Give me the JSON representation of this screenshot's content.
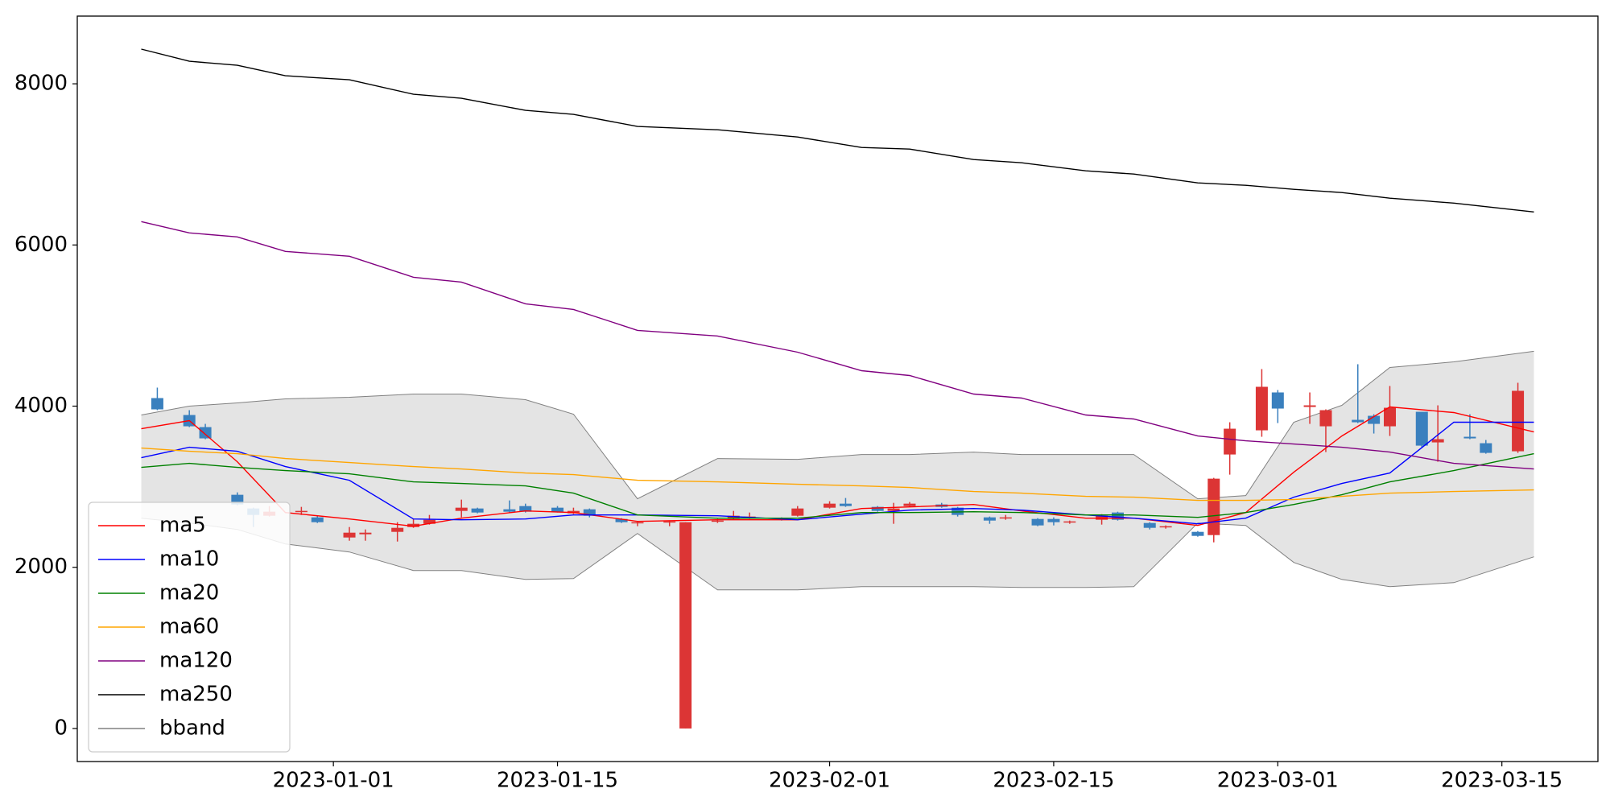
{
  "chart_data": {
    "type": "candlestick",
    "x": [
      "2022-12-20",
      "2022-12-23",
      "2022-12-26",
      "2022-12-29",
      "2023-01-02",
      "2023-01-06",
      "2023-01-09",
      "2023-01-13",
      "2023-01-16",
      "2023-01-20",
      "2023-01-25",
      "2023-01-30",
      "2023-02-03",
      "2023-02-06",
      "2023-02-10",
      "2023-02-13",
      "2023-02-17",
      "2023-02-20",
      "2023-02-24",
      "2023-02-27",
      "2023-03-02",
      "2023-03-05",
      "2023-03-08",
      "2023-03-12",
      "2023-03-17"
    ],
    "series": [
      {
        "name": "ma5",
        "color": "#ff0000",
        "values": [
          3720,
          3820,
          3310,
          2680,
          2600,
          2510,
          2610,
          2700,
          2680,
          2570,
          2590,
          2590,
          2730,
          2750,
          2780,
          2700,
          2610,
          2610,
          2520,
          2680,
          3180,
          3630,
          3990,
          3920,
          3680
        ]
      },
      {
        "name": "ma10",
        "color": "#0000ff",
        "values": [
          3360,
          3490,
          3440,
          3250,
          3080,
          2600,
          2590,
          2600,
          2650,
          2650,
          2640,
          2590,
          2660,
          2710,
          2730,
          2710,
          2650,
          2610,
          2540,
          2610,
          2870,
          3040,
          3170,
          3800,
          3800
        ]
      },
      {
        "name": "ma20",
        "color": "#008000",
        "values": [
          3240,
          3290,
          3240,
          3200,
          3160,
          3060,
          3040,
          3010,
          2920,
          2650,
          2610,
          2610,
          2680,
          2680,
          2690,
          2680,
          2650,
          2650,
          2620,
          2680,
          2780,
          2900,
          3060,
          3200,
          3410
        ]
      },
      {
        "name": "ma60",
        "color": "#ffa500",
        "values": [
          3480,
          3440,
          3410,
          3350,
          3300,
          3250,
          3220,
          3170,
          3150,
          3080,
          3060,
          3030,
          3010,
          2990,
          2940,
          2920,
          2880,
          2870,
          2830,
          2830,
          2840,
          2880,
          2920,
          2940,
          2960
        ]
      },
      {
        "name": "ma120",
        "color": "#800080",
        "values": [
          6290,
          6150,
          6100,
          5920,
          5860,
          5600,
          5540,
          5270,
          5200,
          4940,
          4870,
          4670,
          4440,
          4380,
          4150,
          4100,
          3890,
          3840,
          3630,
          3570,
          3530,
          3490,
          3430,
          3290,
          3220
        ]
      },
      {
        "name": "ma250",
        "color": "#000000",
        "values": [
          8430,
          8280,
          8230,
          8100,
          8050,
          7870,
          7820,
          7670,
          7620,
          7470,
          7430,
          7340,
          7210,
          7190,
          7060,
          7020,
          6920,
          6880,
          6770,
          6740,
          6690,
          6650,
          6580,
          6520,
          6410
        ]
      }
    ],
    "band": {
      "name": "bband",
      "color": "#808080",
      "fill": "#e4e4e4",
      "upper": [
        3890,
        4000,
        4040,
        4090,
        4110,
        4150,
        4150,
        4080,
        3900,
        2850,
        3350,
        3340,
        3400,
        3400,
        3430,
        3400,
        3400,
        3400,
        2850,
        2890,
        3800,
        4010,
        4480,
        4550,
        4680
      ],
      "lower": [
        2610,
        2550,
        2470,
        2290,
        2190,
        1960,
        1960,
        1850,
        1860,
        2420,
        1720,
        1720,
        1760,
        1760,
        1760,
        1750,
        1750,
        1760,
        2550,
        2520,
        2060,
        1850,
        1760,
        1810,
        2130
      ]
    },
    "candles": {
      "up_color": "#3a80be",
      "down_color": "#dc3535",
      "x": [
        "2022-12-21",
        "2022-12-23",
        "2022-12-24",
        "2022-12-26",
        "2022-12-27",
        "2022-12-28",
        "2022-12-30",
        "2022-12-31",
        "2023-01-02",
        "2023-01-03",
        "2023-01-05",
        "2023-01-06",
        "2023-01-07",
        "2023-01-09",
        "2023-01-10",
        "2023-01-12",
        "2023-01-13",
        "2023-01-15",
        "2023-01-16",
        "2023-01-17",
        "2023-01-19",
        "2023-01-20",
        "2023-01-22",
        "2023-01-23",
        "2023-01-25",
        "2023-01-26",
        "2023-01-27",
        "2023-01-29",
        "2023-01-30",
        "2023-02-01",
        "2023-02-02",
        "2023-02-04",
        "2023-02-05",
        "2023-02-06",
        "2023-02-08",
        "2023-02-09",
        "2023-02-11",
        "2023-02-12",
        "2023-02-14",
        "2023-02-15",
        "2023-02-16",
        "2023-02-18",
        "2023-02-19",
        "2023-02-21",
        "2023-02-22",
        "2023-02-24",
        "2023-02-25",
        "2023-02-26",
        "2023-02-28",
        "2023-03-01",
        "2023-03-03",
        "2023-03-04",
        "2023-03-06",
        "2023-03-07",
        "2023-03-08",
        "2023-03-10",
        "2023-03-11",
        "2023-03-13",
        "2023-03-14",
        "2023-03-16"
      ],
      "open": [
        3960,
        3750,
        3600,
        2780,
        2650,
        2690,
        2700,
        2560,
        2430,
        2430,
        2490,
        2540,
        2590,
        2740,
        2680,
        2690,
        2690,
        2690,
        2700,
        2640,
        2560,
        2560,
        2570,
        2560,
        2580,
        2640,
        2630,
        2590,
        2730,
        2790,
        2760,
        2700,
        2730,
        2790,
        2750,
        2650,
        2580,
        2620,
        2520,
        2560,
        2570,
        2640,
        2590,
        2490,
        2510,
        2390,
        3100,
        3720,
        4240,
        3970,
        4010,
        3950,
        3800,
        3780,
        3980,
        3510,
        3590,
        3600,
        3420,
        4190
      ],
      "high": [
        4230,
        3950,
        3780,
        2930,
        2740,
        2760,
        2750,
        2640,
        2500,
        2470,
        2560,
        2600,
        2650,
        2840,
        2740,
        2830,
        2790,
        2760,
        2740,
        2730,
        2610,
        2570,
        2580,
        2560,
        2600,
        2700,
        2680,
        2620,
        2760,
        2820,
        2860,
        2760,
        2800,
        2810,
        2800,
        2750,
        2630,
        2650,
        2610,
        2620,
        2580,
        2660,
        2690,
        2560,
        2520,
        2450,
        3110,
        3800,
        4460,
        4200,
        4170,
        3960,
        4520,
        3900,
        4250,
        3930,
        4010,
        3900,
        3580,
        4290
      ],
      "low": [
        3950,
        3740,
        3590,
        2770,
        2500,
        2630,
        2650,
        2550,
        2330,
        2330,
        2320,
        2490,
        2530,
        2620,
        2670,
        2680,
        2680,
        2680,
        2660,
        2620,
        2550,
        2510,
        2510,
        0,
        2550,
        2590,
        2600,
        2580,
        2630,
        2730,
        2750,
        2690,
        2540,
        2750,
        2740,
        2630,
        2540,
        2590,
        2510,
        2520,
        2540,
        2530,
        2580,
        2470,
        2480,
        2380,
        2310,
        3150,
        3620,
        3790,
        3780,
        3430,
        3790,
        3660,
        3630,
        3480,
        3310,
        3590,
        3410,
        3420
      ],
      "close": [
        4100,
        3890,
        3740,
        2900,
        2730,
        2640,
        2690,
        2620,
        2370,
        2410,
        2440,
        2500,
        2540,
        2700,
        2730,
        2720,
        2760,
        2740,
        2670,
        2720,
        2600,
        2550,
        2560,
        0,
        2570,
        2600,
        2620,
        2610,
        2640,
        2740,
        2790,
        2750,
        2700,
        2760,
        2780,
        2740,
        2620,
        2610,
        2600,
        2600,
        2560,
        2590,
        2680,
        2550,
        2500,
        2440,
        2400,
        3400,
        3700,
        4170,
        3990,
        3750,
        3830,
        3880,
        3750,
        3930,
        3550,
        3620,
        3540,
        3440
      ]
    },
    "xlim": [
      "2022-12-16",
      "2023-03-21"
    ],
    "xticks": [
      "2023-01-01",
      "2023-01-15",
      "2023-02-01",
      "2023-02-15",
      "2023-03-01",
      "2023-03-15"
    ],
    "ylim": [
      -410,
      8840
    ],
    "yticks": [
      0,
      2000,
      4000,
      6000,
      8000
    ],
    "legend": "lower left"
  }
}
